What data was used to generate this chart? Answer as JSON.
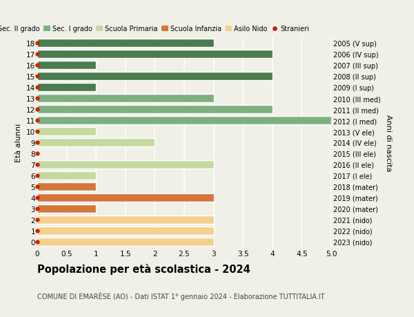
{
  "ages": [
    18,
    17,
    16,
    15,
    14,
    13,
    12,
    11,
    10,
    9,
    8,
    7,
    6,
    5,
    4,
    3,
    2,
    1,
    0
  ],
  "right_labels": [
    "2005 (V sup)",
    "2006 (IV sup)",
    "2007 (III sup)",
    "2008 (II sup)",
    "2009 (I sup)",
    "2010 (III med)",
    "2011 (II med)",
    "2012 (I med)",
    "2013 (V ele)",
    "2014 (IV ele)",
    "2015 (III ele)",
    "2016 (II ele)",
    "2017 (I ele)",
    "2018 (mater)",
    "2019 (mater)",
    "2020 (mater)",
    "2021 (nido)",
    "2022 (nido)",
    "2023 (nido)"
  ],
  "values": [
    3,
    4,
    1,
    4,
    1,
    3,
    4,
    5,
    1,
    2,
    0,
    3,
    1,
    1,
    3,
    1,
    3,
    3,
    3
  ],
  "bar_colors_by_age": {
    "18": "#4a7c4e",
    "17": "#4a7c4e",
    "16": "#4a7c4e",
    "15": "#4a7c4e",
    "14": "#4a7c4e",
    "13": "#7eb07f",
    "12": "#7eb07f",
    "11": "#7eb07f",
    "10": "#c5d9a0",
    "9": "#c5d9a0",
    "8": "#c5d9a0",
    "7": "#c5d9a0",
    "6": "#c5d9a0",
    "5": "#d4763b",
    "4": "#d4763b",
    "3": "#d4763b",
    "2": "#f5d08c",
    "1": "#f5d08c",
    "0": "#f5d08c"
  },
  "stranieri_color": "#cc2200",
  "title": "Popolazione per età scolastica - 2024",
  "subtitle": "COMUNE DI EMARÈSE (AO) - Dati ISTAT 1° gennaio 2024 - Elaborazione TUTTITALIA.IT",
  "ylabel_left": "Età alunni",
  "ylabel_right": "Anni di nascita",
  "xlim": [
    0,
    5.0
  ],
  "xtick_values": [
    0,
    0.5,
    1.0,
    1.5,
    2.0,
    2.5,
    3.0,
    3.5,
    4.0,
    4.5,
    5.0
  ],
  "xtick_labels": [
    "0",
    "0.5",
    "1",
    "1.5",
    "2",
    "2.5",
    "3",
    "3.5",
    "4",
    "4.5",
    "5.0"
  ],
  "legend_labels": [
    "Sec. II grado",
    "Sec. I grado",
    "Scuola Primaria",
    "Scuola Infanzia",
    "Asilo Nido",
    "Stranieri"
  ],
  "legend_colors": [
    "#4a7c4e",
    "#7eb07f",
    "#c5d9a0",
    "#d4763b",
    "#f5d08c",
    "#cc2200"
  ],
  "background_color": "#f0f0e8",
  "grid_color": "#ffffff"
}
